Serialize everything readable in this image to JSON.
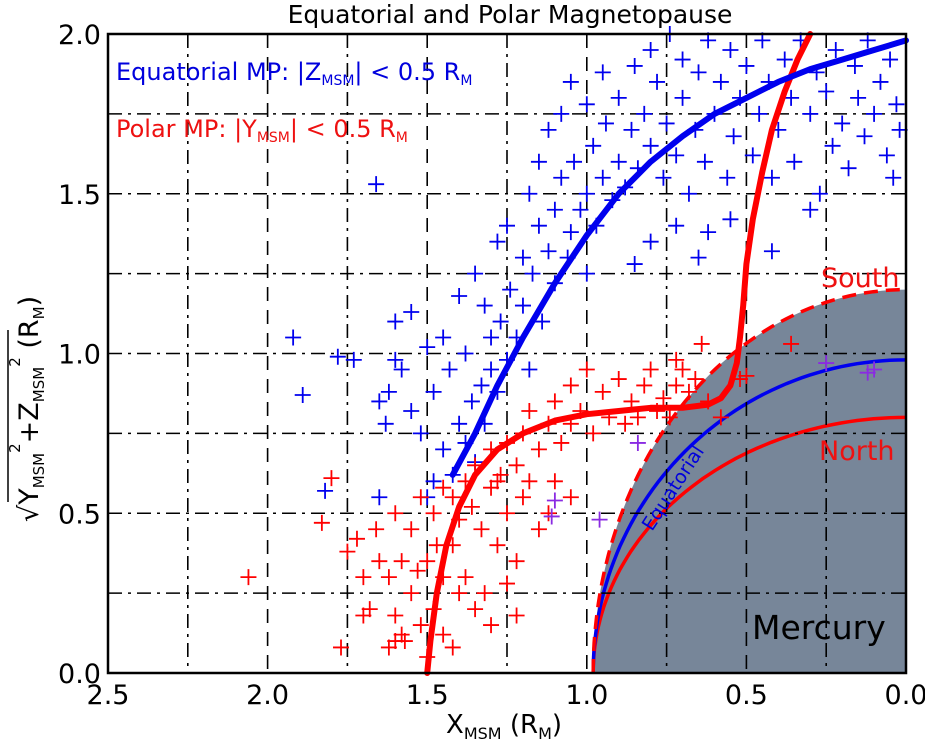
{
  "chart_data": {
    "type": "scatter",
    "title": "Equatorial and Polar Magnetopause",
    "xlabel": {
      "main": "X",
      "sub": "MSM",
      "unit_open": " (R",
      "unit_sub": "M",
      "unit_close": ")"
    },
    "ylabel": {
      "sqrt": "√",
      "y": "Y",
      "sub1": "MSM",
      "sup1": "2",
      "plus_z": "+Z",
      "sub2": "MSM",
      "sup2": "2",
      "unit_open": " (R",
      "unit_sub": "M",
      "unit_close": ")"
    },
    "xlim": [
      2.5,
      0.0
    ],
    "ylim": [
      0.0,
      2.0
    ],
    "x_reversed": true,
    "grid": true,
    "xticks": [
      "2.5",
      "2.0",
      "1.5",
      "1.0",
      "0.5",
      "0.0"
    ],
    "xtick_values": [
      2.5,
      2.0,
      1.5,
      1.0,
      0.5,
      0.0
    ],
    "yticks": [
      "0.0",
      "0.5",
      "1.0",
      "1.5",
      "2.0"
    ],
    "ytick_values": [
      0.0,
      0.5,
      1.0,
      1.5,
      2.0
    ],
    "legend": {
      "placement": "top-left",
      "equatorial": {
        "pre": "Equatorial MP: |Z",
        "sub": "MSM",
        "mid": "| < 0.5 R",
        "sub2": "M",
        "color": "#0000dd"
      },
      "polar": {
        "pre": "Polar MP: |Y",
        "sub": "MSM",
        "mid": "| < 0.5 R",
        "sub2": "M",
        "color": "#ee1111"
      }
    },
    "annotations": {
      "south": "South",
      "north": "North",
      "equatorial": "Equatorial",
      "mercury": "Mercury"
    },
    "colors": {
      "blue": "#0000ee",
      "red": "#ff0000",
      "purple": "#8a2be2",
      "mercury_fill": "#778699"
    },
    "mercury": {
      "equatorial_radius": 0.98,
      "south_radius": 1.2,
      "north_radius": 0.8,
      "center_x": 0.0
    },
    "series": [
      {
        "name": "Equatorial MP crossings",
        "color": "#0000ee",
        "points": [
          [
            1.45,
            0.7
          ],
          [
            1.42,
            0.62
          ],
          [
            1.4,
            0.78
          ],
          [
            1.38,
            0.72
          ],
          [
            1.36,
            0.85
          ],
          [
            1.35,
            0.66
          ],
          [
            1.33,
            0.9
          ],
          [
            1.32,
            0.78
          ],
          [
            1.3,
            0.95
          ],
          [
            1.3,
            1.05
          ],
          [
            1.28,
            0.88
          ],
          [
            1.27,
            1.1
          ],
          [
            1.25,
            0.98
          ],
          [
            1.24,
            1.2
          ],
          [
            1.22,
            1.05
          ],
          [
            1.2,
            1.15
          ],
          [
            1.2,
            1.3
          ],
          [
            1.18,
            0.95
          ],
          [
            1.17,
            1.25
          ],
          [
            1.15,
            1.4
          ],
          [
            1.14,
            1.1
          ],
          [
            1.12,
            1.32
          ],
          [
            1.1,
            1.22
          ],
          [
            1.1,
            1.45
          ],
          [
            1.08,
            1.55
          ],
          [
            1.06,
            1.3
          ],
          [
            1.05,
            1.38
          ],
          [
            1.04,
            1.6
          ],
          [
            1.02,
            1.45
          ],
          [
            1.0,
            1.25
          ],
          [
            1.0,
            1.5
          ],
          [
            0.98,
            1.65
          ],
          [
            0.97,
            1.4
          ],
          [
            0.95,
            1.55
          ],
          [
            0.94,
            1.72
          ],
          [
            0.92,
            1.48
          ],
          [
            0.9,
            1.6
          ],
          [
            0.9,
            1.8
          ],
          [
            0.88,
            1.52
          ],
          [
            0.86,
            1.7
          ],
          [
            0.85,
            1.9
          ],
          [
            0.84,
            1.58
          ],
          [
            0.82,
            1.75
          ],
          [
            0.8,
            1.65
          ],
          [
            0.8,
            1.95
          ],
          [
            0.78,
            1.85
          ],
          [
            0.76,
            1.55
          ],
          [
            0.75,
            1.72
          ],
          [
            0.74,
            2.0
          ],
          [
            0.72,
            1.62
          ],
          [
            0.7,
            1.8
          ],
          [
            0.7,
            1.92
          ],
          [
            0.68,
            1.5
          ],
          [
            0.66,
            1.7
          ],
          [
            0.65,
            1.88
          ],
          [
            0.63,
            1.6
          ],
          [
            0.62,
            1.98
          ],
          [
            0.6,
            1.75
          ],
          [
            0.58,
            1.85
          ],
          [
            0.56,
            1.55
          ],
          [
            0.55,
            1.95
          ],
          [
            0.54,
            1.68
          ],
          [
            0.52,
            1.8
          ],
          [
            0.5,
            1.9
          ],
          [
            0.48,
            1.62
          ],
          [
            0.46,
            1.75
          ],
          [
            0.45,
            1.98
          ],
          [
            0.43,
            1.85
          ],
          [
            0.42,
            1.55
          ],
          [
            0.4,
            1.7
          ],
          [
            0.38,
            1.92
          ],
          [
            0.36,
            1.8
          ],
          [
            0.35,
            1.6
          ],
          [
            0.33,
            1.98
          ],
          [
            0.3,
            1.75
          ],
          [
            0.28,
            1.88
          ],
          [
            0.27,
            1.5
          ],
          [
            0.25,
            1.82
          ],
          [
            0.23,
            1.65
          ],
          [
            0.22,
            1.95
          ],
          [
            0.2,
            1.72
          ],
          [
            0.18,
            1.58
          ],
          [
            0.16,
            1.9
          ],
          [
            0.15,
            1.8
          ],
          [
            0.13,
            1.68
          ],
          [
            0.12,
            1.98
          ],
          [
            0.1,
            1.75
          ],
          [
            0.08,
            1.85
          ],
          [
            0.06,
            1.62
          ],
          [
            0.05,
            1.92
          ],
          [
            0.03,
            1.78
          ],
          [
            0.02,
            1.7
          ],
          [
            0.04,
            1.55
          ],
          [
            0.55,
            1.42
          ],
          [
            0.62,
            1.38
          ],
          [
            0.42,
            1.32
          ],
          [
            0.3,
            1.45
          ],
          [
            1.55,
            1.13
          ],
          [
            1.6,
            1.1
          ],
          [
            1.58,
            0.95
          ],
          [
            1.55,
            0.82
          ],
          [
            1.52,
            0.75
          ],
          [
            1.5,
            1.02
          ],
          [
            1.48,
            0.88
          ],
          [
            1.45,
            1.05
          ],
          [
            1.43,
            0.95
          ],
          [
            1.4,
            1.18
          ],
          [
            1.38,
            1.0
          ],
          [
            1.35,
            1.25
          ],
          [
            1.32,
            1.15
          ],
          [
            1.48,
            0.6
          ],
          [
            1.5,
            0.55
          ],
          [
            1.65,
            0.85
          ],
          [
            1.62,
            0.88
          ],
          [
            1.63,
            0.78
          ],
          [
            1.6,
            0.98
          ],
          [
            1.92,
            1.05
          ],
          [
            1.89,
            0.87
          ],
          [
            1.78,
            0.99
          ],
          [
            1.73,
            0.98
          ],
          [
            1.66,
            1.53
          ],
          [
            1.82,
            0.57
          ],
          [
            1.65,
            0.55
          ],
          [
            1.28,
            1.35
          ],
          [
            1.25,
            1.4
          ],
          [
            1.18,
            1.5
          ],
          [
            1.15,
            1.6
          ],
          [
            1.12,
            1.7
          ],
          [
            1.08,
            1.75
          ],
          [
            1.0,
            1.78
          ],
          [
            0.95,
            1.88
          ],
          [
            1.05,
            1.85
          ],
          [
            0.85,
            1.28
          ],
          [
            0.8,
            1.35
          ],
          [
            0.72,
            1.4
          ],
          [
            0.65,
            1.3
          ]
        ]
      },
      {
        "name": "Polar MP crossings",
        "color": "#ff0000",
        "points": [
          [
            1.5,
            0.05
          ],
          [
            1.52,
            0.15
          ],
          [
            1.48,
            0.2
          ],
          [
            1.55,
            0.25
          ],
          [
            1.45,
            0.3
          ],
          [
            1.42,
            0.4
          ],
          [
            1.5,
            0.35
          ],
          [
            1.58,
            0.12
          ],
          [
            1.57,
            0.1
          ],
          [
            1.6,
            0.18
          ],
          [
            1.62,
            0.3
          ],
          [
            1.65,
            0.35
          ],
          [
            1.7,
            0.3
          ],
          [
            1.68,
            0.2
          ],
          [
            1.72,
            0.42
          ],
          [
            1.66,
            0.45
          ],
          [
            1.6,
            0.5
          ],
          [
            1.55,
            0.45
          ],
          [
            1.52,
            0.55
          ],
          [
            1.48,
            0.5
          ],
          [
            1.45,
            0.58
          ],
          [
            1.42,
            0.55
          ],
          [
            1.4,
            0.48
          ],
          [
            1.38,
            0.6
          ],
          [
            1.36,
            0.52
          ],
          [
            1.35,
            0.65
          ],
          [
            1.33,
            0.45
          ],
          [
            1.3,
            0.58
          ],
          [
            1.3,
            0.7
          ],
          [
            1.28,
            0.4
          ],
          [
            1.27,
            0.62
          ],
          [
            1.25,
            0.72
          ],
          [
            1.25,
            0.5
          ],
          [
            1.22,
            0.35
          ],
          [
            1.22,
            0.65
          ],
          [
            1.2,
            0.75
          ],
          [
            1.2,
            0.55
          ],
          [
            1.18,
            0.82
          ],
          [
            1.15,
            0.7
          ],
          [
            1.15,
            0.45
          ],
          [
            1.12,
            0.78
          ],
          [
            1.1,
            0.85
          ],
          [
            1.08,
            0.72
          ],
          [
            1.05,
            0.9
          ],
          [
            1.05,
            0.78
          ],
          [
            1.02,
            0.82
          ],
          [
            1.0,
            0.95
          ],
          [
            0.98,
            0.75
          ],
          [
            0.95,
            0.88
          ],
          [
            0.93,
            0.8
          ],
          [
            0.9,
            0.92
          ],
          [
            0.88,
            0.78
          ],
          [
            0.86,
            0.85
          ],
          [
            0.84,
            0.8
          ],
          [
            0.82,
            0.9
          ],
          [
            0.8,
            0.95
          ],
          [
            0.78,
            0.82
          ],
          [
            0.76,
            0.86
          ],
          [
            0.74,
            0.8
          ],
          [
            0.72,
            0.9
          ],
          [
            0.72,
            0.98
          ],
          [
            0.7,
            0.95
          ],
          [
            0.68,
            0.88
          ],
          [
            0.66,
            0.92
          ],
          [
            0.64,
            1.03
          ],
          [
            0.62,
            0.85
          ],
          [
            0.58,
            0.8
          ],
          [
            0.52,
            0.92
          ],
          [
            0.5,
            0.93
          ],
          [
            0.36,
            1.03
          ],
          [
            1.4,
            0.25
          ],
          [
            1.38,
            0.3
          ],
          [
            1.35,
            0.2
          ],
          [
            1.32,
            0.25
          ],
          [
            1.3,
            0.15
          ],
          [
            1.45,
            0.12
          ],
          [
            1.42,
            0.08
          ],
          [
            1.47,
            0.4
          ],
          [
            1.53,
            0.32
          ],
          [
            1.58,
            0.35
          ],
          [
            1.62,
            0.08
          ],
          [
            1.6,
            0.1
          ],
          [
            2.06,
            0.3
          ],
          [
            1.77,
            0.08
          ],
          [
            1.8,
            0.61
          ],
          [
            1.83,
            0.47
          ],
          [
            1.75,
            0.38
          ],
          [
            1.7,
            0.18
          ],
          [
            1.25,
            0.28
          ],
          [
            1.22,
            0.18
          ],
          [
            1.28,
            0.6
          ],
          [
            1.1,
            0.6
          ],
          [
            1.05,
            0.55
          ],
          [
            1.18,
            0.6
          ],
          [
            1.12,
            0.5
          ]
        ]
      },
      {
        "name": "Other crossings",
        "color": "#8a2be2",
        "points": [
          [
            0.84,
            0.72
          ],
          [
            0.96,
            0.48
          ],
          [
            1.1,
            0.54
          ],
          [
            1.11,
            0.49
          ],
          [
            0.25,
            0.97
          ],
          [
            0.12,
            0.94
          ],
          [
            0.1,
            0.95
          ]
        ]
      }
    ],
    "fits": [
      {
        "name": "Polar MP fit",
        "color": "#ff0000",
        "points": [
          [
            1.5,
            0
          ],
          [
            1.49,
            0.1
          ],
          [
            1.47,
            0.25
          ],
          [
            1.44,
            0.4
          ],
          [
            1.4,
            0.52
          ],
          [
            1.35,
            0.62
          ],
          [
            1.28,
            0.7
          ],
          [
            1.2,
            0.75
          ],
          [
            1.1,
            0.79
          ],
          [
            1.0,
            0.81
          ],
          [
            0.9,
            0.82
          ],
          [
            0.8,
            0.83
          ],
          [
            0.7,
            0.83
          ],
          [
            0.62,
            0.84
          ],
          [
            0.58,
            0.86
          ],
          [
            0.55,
            0.9
          ],
          [
            0.53,
            0.97
          ],
          [
            0.52,
            1.05
          ],
          [
            0.51,
            1.15
          ],
          [
            0.5,
            1.28
          ],
          [
            0.48,
            1.42
          ],
          [
            0.45,
            1.57
          ],
          [
            0.42,
            1.7
          ],
          [
            0.38,
            1.82
          ],
          [
            0.34,
            1.92
          ],
          [
            0.3,
            2.0
          ]
        ]
      },
      {
        "name": "Equatorial MP fit",
        "color": "#0000ee",
        "points": [
          [
            1.42,
            0.62
          ],
          [
            1.35,
            0.75
          ],
          [
            1.28,
            0.9
          ],
          [
            1.2,
            1.05
          ],
          [
            1.1,
            1.22
          ],
          [
            1.0,
            1.37
          ],
          [
            0.9,
            1.5
          ],
          [
            0.8,
            1.6
          ],
          [
            0.7,
            1.68
          ],
          [
            0.6,
            1.75
          ],
          [
            0.5,
            1.8
          ],
          [
            0.4,
            1.85
          ],
          [
            0.3,
            1.89
          ],
          [
            0.2,
            1.92
          ],
          [
            0.1,
            1.95
          ],
          [
            0.0,
            1.98
          ]
        ]
      }
    ]
  }
}
